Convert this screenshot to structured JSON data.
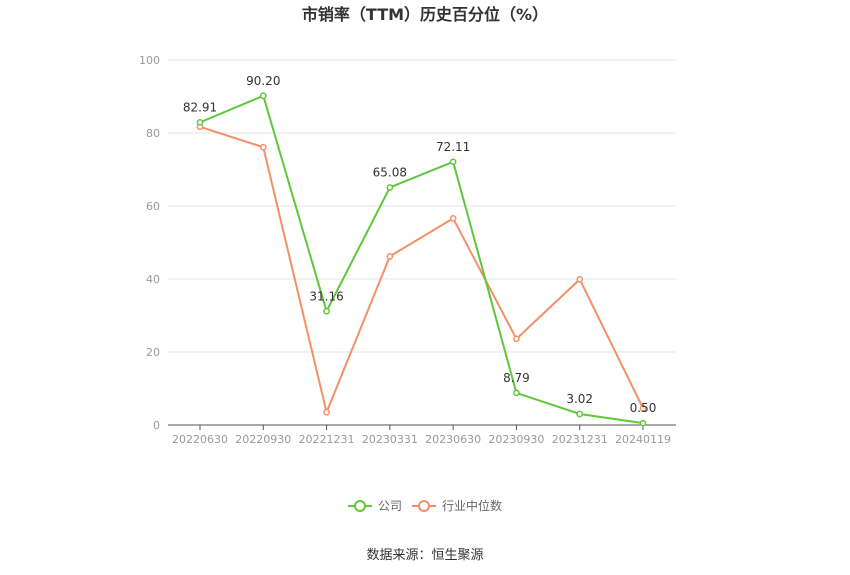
{
  "chart_data": {
    "type": "line",
    "title": "市销率（TTM）历史百分位（%）",
    "categories": [
      "20220630",
      "20220930",
      "20221231",
      "20230331",
      "20230630",
      "20230930",
      "20231231",
      "20240119"
    ],
    "series": [
      {
        "name": "公司",
        "values": [
          82.91,
          90.2,
          31.16,
          65.08,
          72.11,
          8.79,
          3.02,
          0.5
        ],
        "labels": [
          "82.91",
          "90.20",
          "31.16",
          "65.08",
          "72.11",
          "8.79",
          "3.02",
          "0.50"
        ],
        "color": "#5ec73a"
      },
      {
        "name": "行业中位数",
        "values": [
          81.7,
          76.1,
          3.5,
          46.2,
          56.6,
          23.6,
          39.9,
          4.6
        ],
        "color": "#f29066"
      }
    ],
    "ylim": [
      0,
      100
    ],
    "yticks": [
      "0",
      "20",
      "40",
      "60",
      "80",
      "100"
    ],
    "grid": true,
    "legend_position": "bottom-center",
    "source": "数据来源：恒生聚源"
  }
}
